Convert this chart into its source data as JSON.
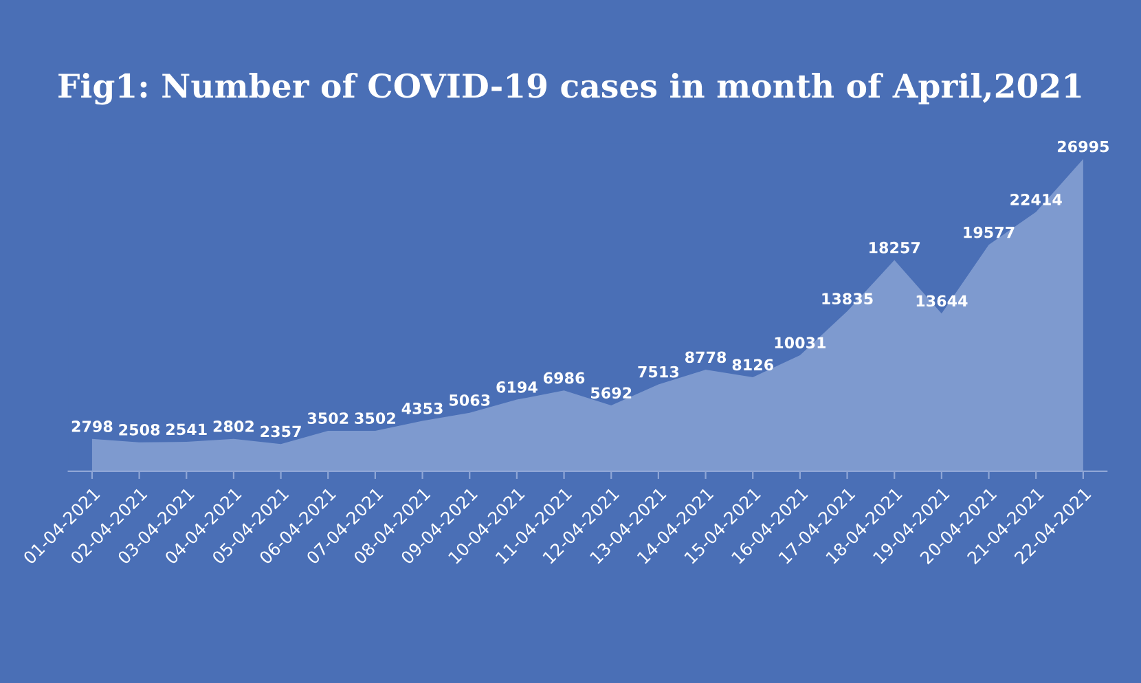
{
  "chart_data": {
    "type": "area",
    "title": "Fig1: Number of COVID-19 cases in month of April,2021",
    "categories": [
      "01-04-2021",
      "02-04-2021",
      "03-04-2021",
      "04-04-2021",
      "05-04-2021",
      "06-04-2021",
      "07-04-2021",
      "08-04-2021",
      "09-04-2021",
      "10-04-2021",
      "11-04-2021",
      "12-04-2021",
      "13-04-2021",
      "14-04-2021",
      "15-04-2021",
      "16-04-2021",
      "17-04-2021",
      "18-04-2021",
      "19-04-2021",
      "20-04-2021",
      "21-04-2021",
      "22-04-2021"
    ],
    "values": [
      2798,
      2508,
      2541,
      2802,
      2357,
      3502,
      3502,
      4353,
      5063,
      6194,
      6986,
      5692,
      7513,
      8778,
      8126,
      10031,
      13835,
      18257,
      13644,
      19577,
      22414,
      26995
    ],
    "color": "#a9bde3",
    "data_labels": true,
    "grid": false,
    "legend": false
  }
}
